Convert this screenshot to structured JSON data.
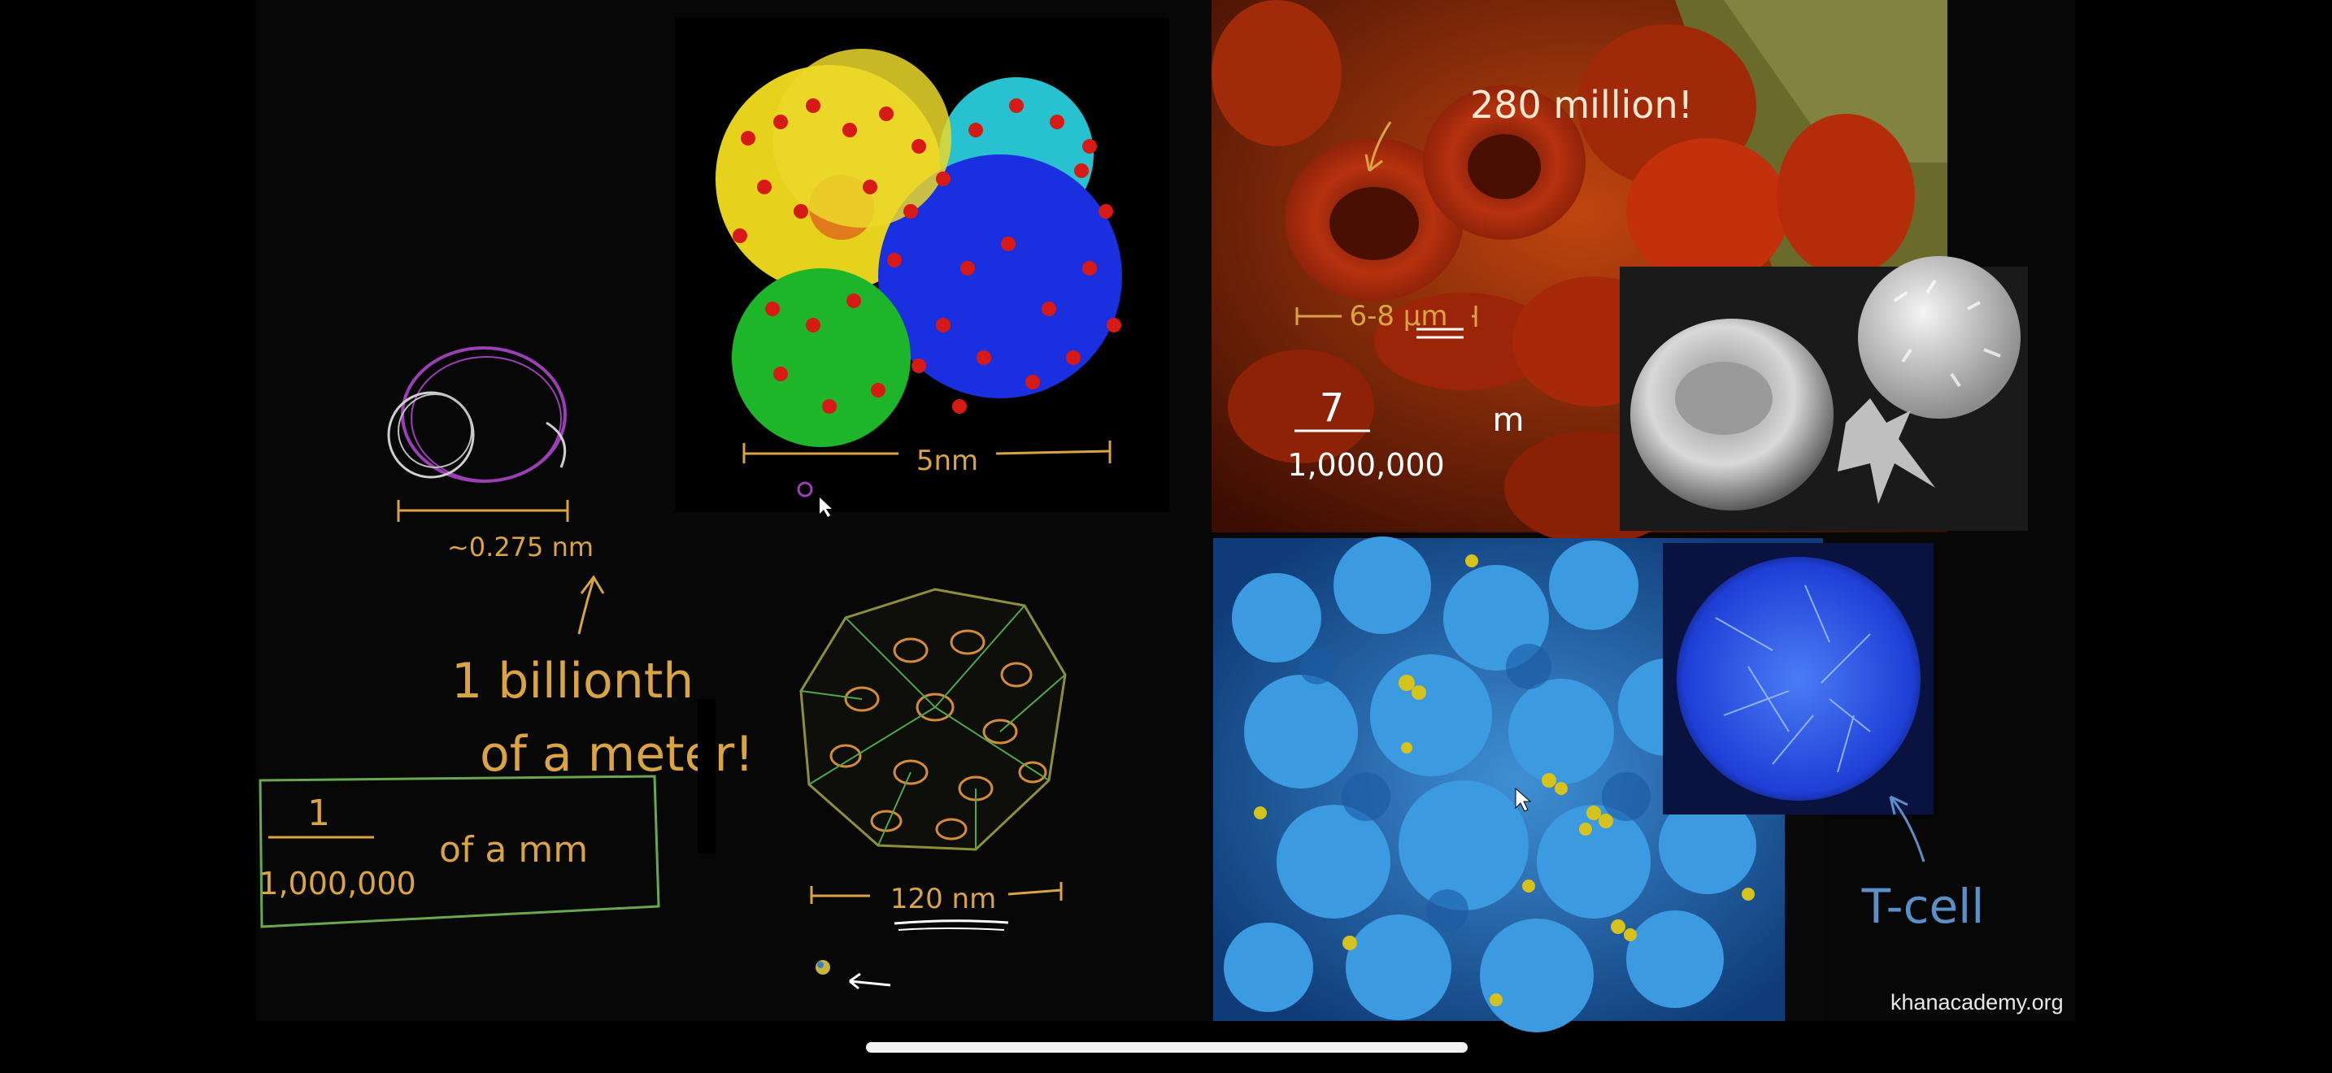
{
  "video": {
    "annotations": {
      "atom_size": "~0.275 nm",
      "billionth_line1": "1 billionth",
      "billionth_line2": "of a meter!",
      "fraction_numerator": "1",
      "fraction_denominator": "1,000,000",
      "fraction_suffix": "of a mm",
      "protein_size": "5nm",
      "virus_size": "120 nm",
      "rbc_count": "280 million!",
      "rbc_size": "6-8 μm",
      "rbc_fraction_numerator": "7",
      "rbc_fraction_denominator": "1,000,000",
      "rbc_fraction_unit": "m",
      "tcell_label": "T-cell"
    },
    "images": [
      {
        "name": "hemoglobin-molecule",
        "caption": ""
      },
      {
        "name": "red-blood-cells-sem",
        "caption": ""
      },
      {
        "name": "rbc-and-white-cell-sem",
        "caption": ""
      },
      {
        "name": "virus-capsid-drawing",
        "caption": ""
      },
      {
        "name": "hiv-on-tcell-sem",
        "caption": ""
      },
      {
        "name": "tcell-sem",
        "caption": ""
      }
    ],
    "watermark": "khanacademy.org"
  },
  "colors": {
    "pen_orange": "#d9a441",
    "pen_purple": "#9b3fb5",
    "pen_green": "#6aa84f",
    "pen_blue": "#5b8fc7",
    "background": "#070707"
  }
}
